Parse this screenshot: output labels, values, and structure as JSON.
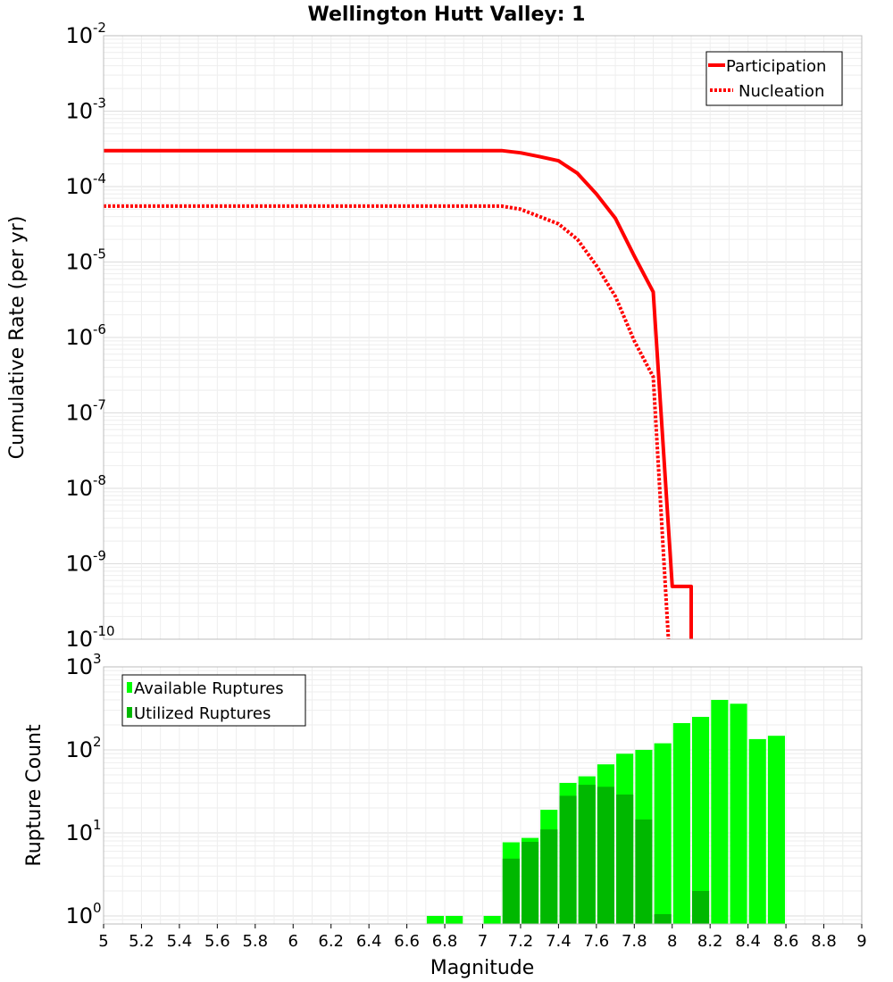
{
  "title": "Wellington Hutt Valley: 1",
  "xlabel": "Magnitude",
  "colors": {
    "line": "#ff0000",
    "available": "#00ff00",
    "utilized": "#00b800",
    "grid": "#e3e3e3",
    "frame": "#bcbcbc"
  },
  "chart_data": [
    {
      "type": "line",
      "ylabel": "Cumulative Rate (per yr)",
      "yscale": "log",
      "ylim": [
        1e-10,
        0.01
      ],
      "xlim": [
        5,
        9
      ],
      "grid": true,
      "legend_position": "top-right",
      "series": [
        {
          "name": "Participation",
          "style": "solid",
          "x": [
            5.0,
            7.1,
            7.2,
            7.3,
            7.4,
            7.5,
            7.6,
            7.7,
            7.8,
            7.9,
            8.0,
            8.1,
            8.1
          ],
          "y": [
            0.0003,
            0.0003,
            0.00028,
            0.00025,
            0.00022,
            0.00015,
            8e-05,
            3.8e-05,
            1.2e-05,
            4e-06,
            5e-10,
            5e-10,
            1e-10
          ]
        },
        {
          "name": "Nucleation",
          "style": "dotted",
          "x": [
            5.0,
            7.1,
            7.2,
            7.3,
            7.4,
            7.5,
            7.6,
            7.7,
            7.8,
            7.9,
            7.98
          ],
          "y": [
            5.5e-05,
            5.5e-05,
            5e-05,
            4e-05,
            3.2e-05,
            2e-05,
            9e-06,
            3.5e-06,
            9e-07,
            3e-07,
            1e-10
          ]
        }
      ]
    },
    {
      "type": "bar",
      "ylabel": "Rupture Count",
      "yscale": "log",
      "ylim": [
        0.8,
        1000
      ],
      "xlim": [
        5,
        9
      ],
      "grid": true,
      "legend_position": "top-left",
      "bar_width": 0.09,
      "series": [
        {
          "name": "Available Ruptures",
          "x": [
            6.7,
            6.8,
            7.0,
            7.1,
            7.2,
            7.3,
            7.4,
            7.5,
            7.6,
            7.7,
            7.8,
            7.9,
            8.0,
            8.1,
            8.2,
            8.3,
            8.4,
            8.5
          ],
          "values": [
            1,
            1,
            1,
            7.7,
            8.7,
            19,
            40,
            48,
            67,
            90,
            100,
            120,
            210,
            250,
            400,
            360,
            135,
            148
          ]
        },
        {
          "name": "Utilized Ruptures",
          "x": [
            7.1,
            7.2,
            7.3,
            7.4,
            7.5,
            7.6,
            7.7,
            7.8,
            7.9,
            8.1
          ],
          "values": [
            4.9,
            7.8,
            11,
            28,
            38,
            36,
            29,
            14.5,
            1.05,
            2
          ]
        }
      ]
    }
  ],
  "x_ticks": [
    "5",
    "5.2",
    "5.4",
    "5.6",
    "5.8",
    "6",
    "6.2",
    "6.4",
    "6.6",
    "6.8",
    "7",
    "7.2",
    "7.4",
    "7.6",
    "7.8",
    "8",
    "8.2",
    "8.4",
    "8.6",
    "8.8",
    "9"
  ]
}
